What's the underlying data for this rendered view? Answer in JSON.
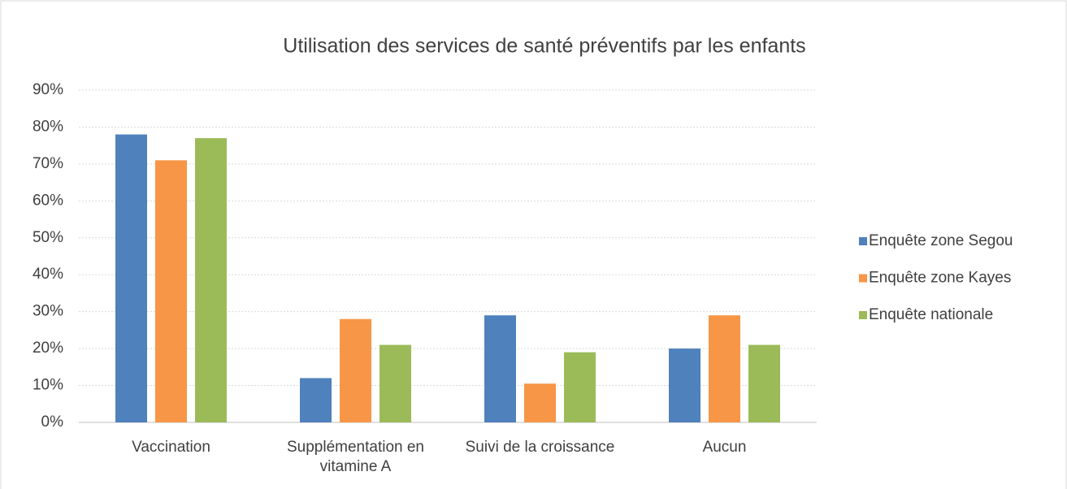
{
  "chart_data": {
    "type": "bar",
    "title": "Utilisation des services de santé préventifs par les enfants",
    "categories": [
      "Vaccination",
      "Supplémentation en vitamine A",
      "Suivi de la croissance",
      "Aucun"
    ],
    "series": [
      {
        "name": "Enquête zone Segou",
        "color": "#4f81bd",
        "values": [
          78,
          12,
          29,
          20
        ]
      },
      {
        "name": "Enquête zone Kayes",
        "color": "#f79646",
        "values": [
          71,
          28,
          10.5,
          29
        ]
      },
      {
        "name": "Enquête nationale",
        "color": "#9bbb59",
        "values": [
          77,
          21,
          19,
          21
        ]
      }
    ],
    "ylim": [
      0,
      90
    ],
    "yticks": [
      {
        "value": 0,
        "label": "0%"
      },
      {
        "value": 10,
        "label": "10%"
      },
      {
        "value": 20,
        "label": "20%"
      },
      {
        "value": 30,
        "label": "30%"
      },
      {
        "value": 40,
        "label": "40%"
      },
      {
        "value": 50,
        "label": "50%"
      },
      {
        "value": 60,
        "label": "60%"
      },
      {
        "value": 70,
        "label": "70%"
      },
      {
        "value": 80,
        "label": "80%"
      },
      {
        "value": 90,
        "label": "90%"
      }
    ],
    "grid": true,
    "legend": "right"
  }
}
